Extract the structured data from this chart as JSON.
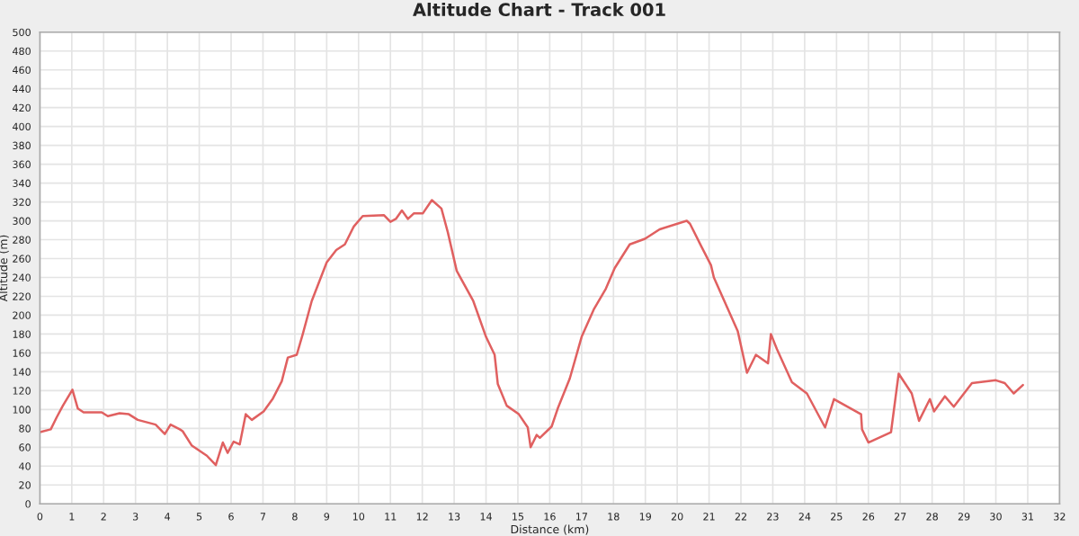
{
  "chart_data": {
    "type": "line",
    "title": "Altitude Chart - Track 001",
    "xlabel": "Distance (km)",
    "ylabel": "Altitude (m)",
    "xlim": [
      0,
      32
    ],
    "xticks": [
      0,
      1,
      2,
      3,
      4,
      5,
      6,
      7,
      8,
      9,
      10,
      11,
      12,
      13,
      14,
      15,
      16,
      17,
      18,
      19,
      20,
      21,
      22,
      23,
      24,
      25,
      26,
      27,
      28,
      29,
      30,
      31,
      32
    ],
    "ylim": [
      0,
      500
    ],
    "yticks": [
      0,
      20,
      40,
      60,
      80,
      100,
      120,
      140,
      160,
      180,
      200,
      220,
      240,
      260,
      280,
      300,
      320,
      340,
      360,
      380,
      400,
      420,
      440,
      460,
      480,
      500
    ],
    "grid": true,
    "marker": "none",
    "line_style": "solid",
    "series": [
      {
        "color": "#e06060",
        "x": [
          0,
          0.34,
          0.53,
          0.72,
          1.02,
          1.19,
          1.37,
          1.94,
          2.13,
          2.5,
          2.79,
          3.07,
          3.63,
          3.92,
          4.1,
          4.39,
          4.48,
          4.76,
          5.24,
          5.52,
          5.74,
          5.89,
          6.08,
          6.27,
          6.46,
          6.65,
          7.02,
          7.3,
          7.59,
          7.78,
          8.06,
          8.25,
          8.53,
          9.0,
          9.3,
          9.57,
          9.85,
          10.13,
          10.8,
          11.0,
          11.17,
          11.36,
          11.55,
          11.74,
          12.02,
          12.3,
          12.6,
          12.8,
          13.08,
          13.6,
          14.0,
          14.27,
          14.37,
          14.65,
          15.03,
          15.31,
          15.4,
          15.59,
          15.69,
          16.06,
          16.25,
          16.63,
          17.0,
          17.38,
          17.76,
          18.04,
          18.51,
          18.99,
          19.45,
          20.3,
          20.4,
          20.77,
          21.06,
          21.15,
          21.9,
          22.19,
          22.47,
          22.85,
          22.94,
          23.13,
          23.6,
          24.07,
          24.64,
          24.92,
          25.77,
          25.8,
          26.0,
          26.71,
          26.95,
          27.36,
          27.59,
          27.93,
          28.06,
          28.4,
          28.68,
          29.25,
          30.0,
          30.28,
          30.56,
          30.85
        ],
        "values": [
          76,
          79,
          92,
          104,
          121,
          101,
          97,
          97,
          93,
          96,
          95,
          89,
          84,
          74,
          84,
          79,
          77,
          62,
          51,
          41,
          65,
          54,
          66,
          63,
          95,
          89,
          98,
          111,
          130,
          155,
          158,
          180,
          215,
          256,
          269,
          275,
          294,
          305,
          306,
          299,
          302,
          311,
          302,
          308,
          308,
          322,
          313,
          288,
          247,
          215,
          177,
          158,
          127,
          104,
          95,
          81,
          60,
          73,
          70,
          82,
          101,
          133,
          177,
          206,
          228,
          250,
          275,
          281,
          291,
          300,
          297,
          272,
          253,
          240,
          183,
          139,
          158,
          149,
          180,
          164,
          129,
          117,
          81,
          111,
          95,
          79,
          65,
          76,
          138,
          117,
          88,
          111,
          98,
          114,
          103,
          128,
          131,
          128,
          117,
          126
        ]
      }
    ]
  }
}
